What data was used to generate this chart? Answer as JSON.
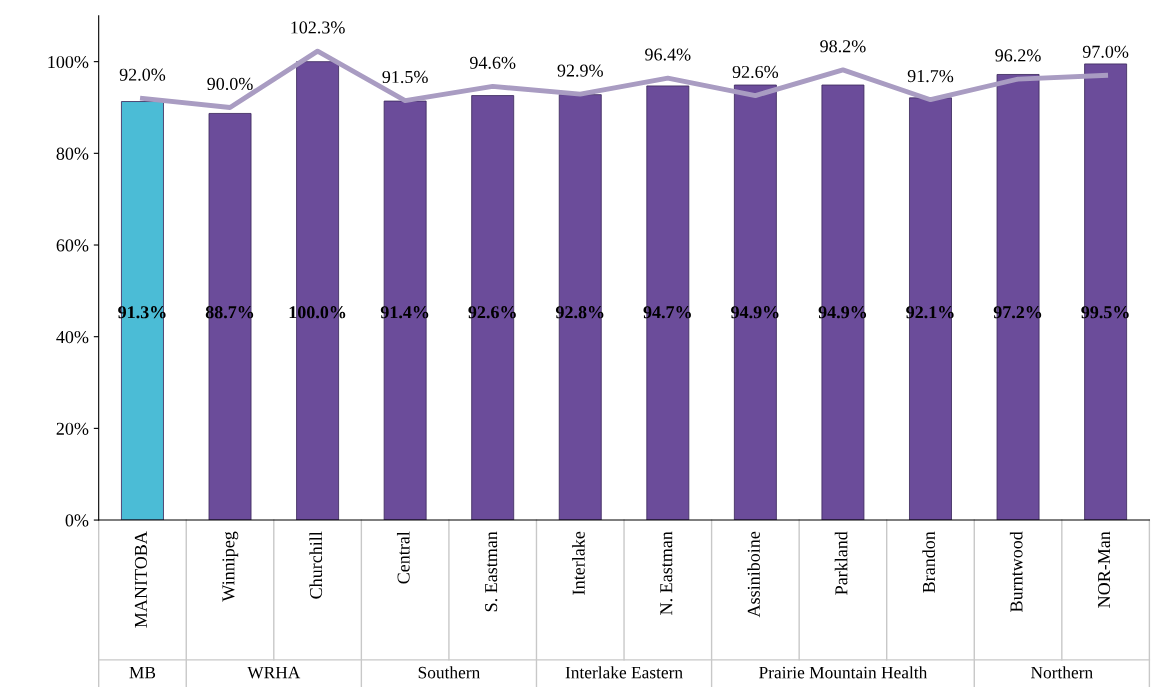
{
  "chart_data": {
    "type": "bar",
    "categories": [
      "MANITOBA",
      "Winnipeg",
      "Churchill",
      "Central",
      "S. Eastman",
      "Interlake",
      "N. Eastman",
      "Assiniboine",
      "Parkland",
      "Brandon",
      "Burntwood",
      "NOR-Man"
    ],
    "series": [
      {
        "colors": [
          "#4bbcd6",
          "#6b4c9a",
          "#6b4c9a",
          "#6b4c9a",
          "#6b4c9a",
          "#6b4c9a",
          "#6b4c9a",
          "#6b4c9a",
          "#6b4c9a",
          "#6b4c9a",
          "#6b4c9a",
          "#6b4c9a"
        ],
        "values": [
          91.3,
          88.7,
          100.0,
          91.4,
          92.6,
          92.8,
          94.7,
          94.9,
          94.9,
          92.1,
          97.2,
          99.5
        ],
        "value_labels": [
          "91.3%",
          "88.7%",
          "100.0%",
          "91.4%",
          "92.6%",
          "92.8%",
          "94.7%",
          "94.9%",
          "94.9%",
          "92.1%",
          "97.2%",
          "99.5%"
        ]
      },
      {
        "type": "line",
        "color": "#a99cc2",
        "values": [
          92.0,
          90.0,
          102.3,
          91.5,
          94.6,
          92.9,
          96.4,
          92.6,
          98.2,
          91.7,
          96.2,
          97.0
        ],
        "value_labels": [
          "92.0%",
          "90.0%",
          "102.3%",
          "91.5%",
          "94.6%",
          "92.9%",
          "96.4%",
          "92.6%",
          "98.2%",
          "91.7%",
          "96.2%",
          "97.0%"
        ]
      }
    ],
    "ylim": [
      0,
      110
    ],
    "yticks": [
      {
        "value": 0,
        "label": "0%"
      },
      {
        "value": 20,
        "label": "20%"
      },
      {
        "value": 40,
        "label": "40%"
      },
      {
        "value": 60,
        "label": "60%"
      },
      {
        "value": 80,
        "label": "80%"
      },
      {
        "value": 100,
        "label": "100%"
      }
    ],
    "grid": false,
    "legend": false,
    "marker": "none",
    "annotations": [
      "MB",
      "WRHA",
      "Southern",
      "Interlake Eastern",
      "Prairie Mountain Health",
      "Northern"
    ]
  }
}
